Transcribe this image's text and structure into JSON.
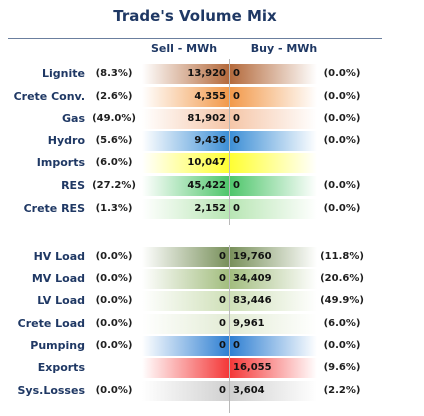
{
  "title": "Trade's Volume Mix",
  "headers": {
    "sell": "Sell - MWh",
    "buy": "Buy - MWh"
  },
  "rows": [
    {
      "label": "Lignite",
      "sell_pct": "(8.3%)",
      "sell": "13,920",
      "buy": "0",
      "buy_pct": "(0.0%)",
      "sell_color": "#b46a3c",
      "buy_color": "#b46a3c"
    },
    {
      "label": "Crete Conv.",
      "sell_pct": "(2.6%)",
      "sell": "4,355",
      "buy": "0",
      "buy_pct": "(0.0%)",
      "sell_color": "#f2994a",
      "buy_color": "#f2994a"
    },
    {
      "label": "Gas",
      "sell_pct": "(49.0%)",
      "sell": "81,902",
      "buy": "0",
      "buy_pct": "(0.0%)",
      "sell_color": "#f5c6a8",
      "buy_color": "#f5c6a8"
    },
    {
      "label": "Hydro",
      "sell_pct": "(5.6%)",
      "sell": "9,436",
      "buy": "0",
      "buy_pct": "(0.0%)",
      "sell_color": "#3d8fd6",
      "buy_color": "#3d8fd6"
    },
    {
      "label": "Imports",
      "sell_pct": "(6.0%)",
      "sell": "10,047",
      "buy": "",
      "buy_pct": "",
      "sell_color": "#ffff33",
      "buy_color": "#ffff33"
    },
    {
      "label": "RES",
      "sell_pct": "(27.2%)",
      "sell": "45,422",
      "buy": "0",
      "buy_pct": "(0.0%)",
      "sell_color": "#4fc66b",
      "buy_color": "#4fc66b"
    },
    {
      "label": "Crete RES",
      "sell_pct": "(1.3%)",
      "sell": "2,152",
      "buy": "0",
      "buy_pct": "(0.0%)",
      "sell_color": "#b8e6b4",
      "buy_color": "#b8e6b4"
    },
    {
      "label": "HV Load",
      "sell_pct": "(0.0%)",
      "sell": "0",
      "buy": "19,760",
      "buy_pct": "(11.8%)",
      "sell_color": "#78905a",
      "buy_color": "#78905a"
    },
    {
      "label": "MV Load",
      "sell_pct": "(0.0%)",
      "sell": "0",
      "buy": "34,409",
      "buy_pct": "(20.6%)",
      "sell_color": "#a2bd7e",
      "buy_color": "#a2bd7e"
    },
    {
      "label": "LV Load",
      "sell_pct": "(0.0%)",
      "sell": "0",
      "buy": "83,446",
      "buy_pct": "(49.9%)",
      "sell_color": "#cfe0b8",
      "buy_color": "#cfe0b8"
    },
    {
      "label": "Crete Load",
      "sell_pct": "(0.0%)",
      "sell": "0",
      "buy": "9,961",
      "buy_pct": "(6.0%)",
      "sell_color": "#e3ecd5",
      "buy_color": "#e3ecd5"
    },
    {
      "label": "Pumping",
      "sell_pct": "(0.0%)",
      "sell": "0",
      "buy": "0",
      "buy_pct": "(0.0%)",
      "sell_color": "#2e7fd2",
      "buy_color": "#2e7fd2"
    },
    {
      "label": "Exports",
      "sell_pct": "",
      "sell": "",
      "buy": "16,055",
      "buy_pct": "(9.6%)",
      "sell_color": "#f43838",
      "buy_color": "#f43838"
    },
    {
      "label": "Sys.Losses",
      "sell_pct": "(0.0%)",
      "sell": "0",
      "buy": "3,604",
      "buy_pct": "(2.2%)",
      "sell_color": "#d0d0d0",
      "buy_color": "#d0d0d0"
    }
  ]
}
